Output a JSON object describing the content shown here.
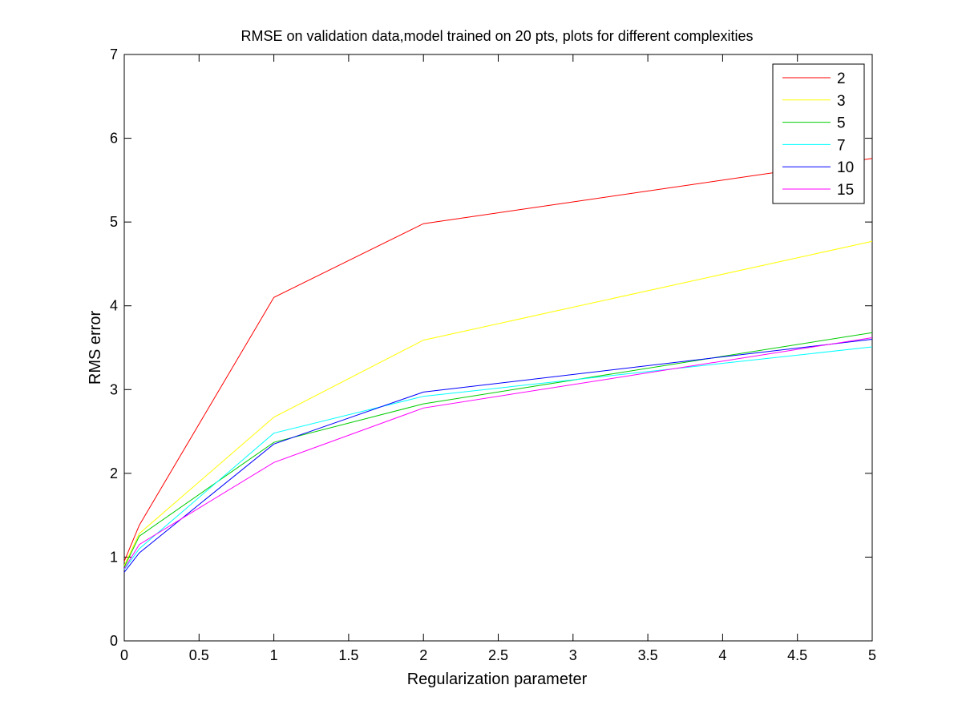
{
  "chart_data": {
    "type": "line",
    "title": "RMSE on validation data,model trained on 20 pts, plots for different complexities",
    "xlabel": "Regularization parameter",
    "ylabel": "RMS error",
    "xlim": [
      0,
      5
    ],
    "ylim": [
      0,
      7
    ],
    "x_ticks": [
      "0",
      "0.5",
      "1",
      "1.5",
      "2",
      "2.5",
      "3",
      "3.5",
      "4",
      "4.5",
      "5"
    ],
    "y_ticks": [
      "0",
      "1",
      "2",
      "3",
      "4",
      "5",
      "6",
      "7"
    ],
    "x": [
      0,
      0.1,
      1,
      2,
      5
    ],
    "grid": false,
    "legend_position": "top-right",
    "series": [
      {
        "name": "2",
        "color": "#ff0000",
        "values": [
          0.95,
          1.38,
          4.1,
          4.98,
          5.76
        ]
      },
      {
        "name": "3",
        "color": "#ffff00",
        "values": [
          0.9,
          1.28,
          2.67,
          3.59,
          4.77
        ]
      },
      {
        "name": "5",
        "color": "#00cc00",
        "values": [
          0.88,
          1.25,
          2.37,
          2.83,
          3.68
        ]
      },
      {
        "name": "7",
        "color": "#00ffff",
        "values": [
          0.85,
          1.1,
          2.48,
          2.92,
          3.51
        ]
      },
      {
        "name": "10",
        "color": "#0000ff",
        "values": [
          0.82,
          1.05,
          2.35,
          2.97,
          3.6
        ]
      },
      {
        "name": "15",
        "color": "#ff00ff",
        "values": [
          0.86,
          1.15,
          2.13,
          2.78,
          3.62
        ]
      }
    ]
  }
}
